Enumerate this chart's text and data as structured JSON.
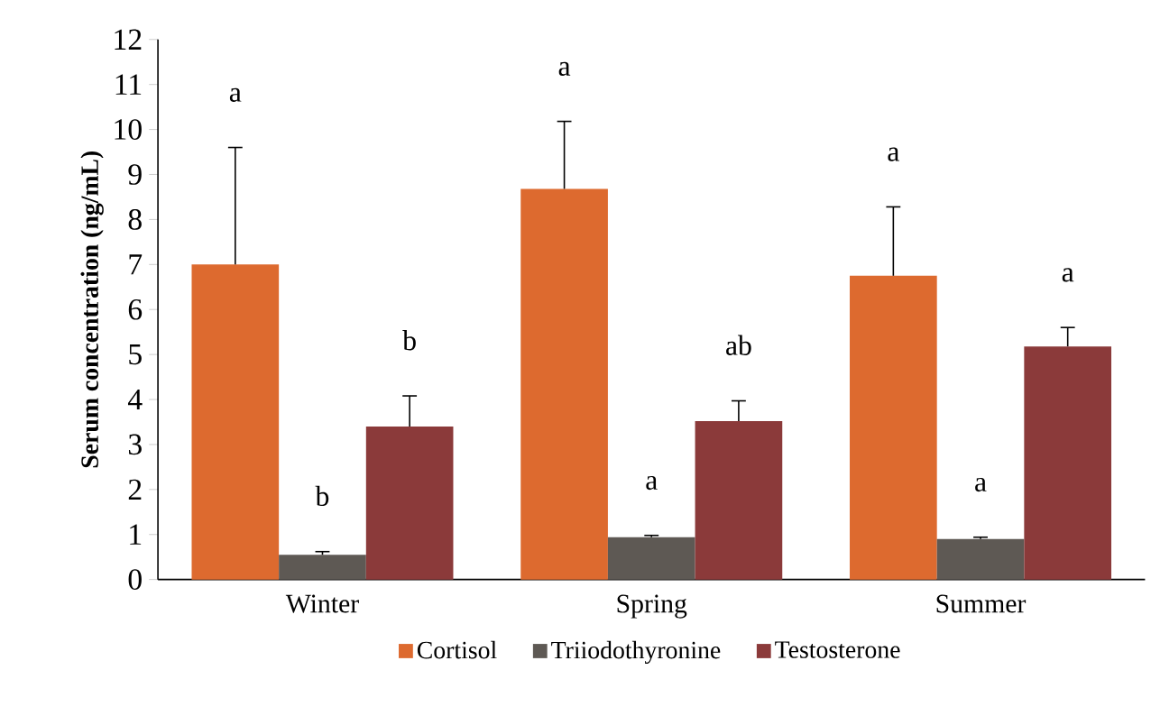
{
  "chart_data": {
    "type": "bar",
    "ylabel": "Serum concentration (ng/mL)",
    "categories": [
      "Winter",
      "Spring",
      "Summer"
    ],
    "series": [
      {
        "name": "Cortisol",
        "color": "#dd6a2f",
        "values": [
          7.0,
          8.68,
          6.75
        ],
        "errors": [
          2.6,
          1.5,
          1.53
        ]
      },
      {
        "name": "Triiodothyronine",
        "color": "#5e5954",
        "values": [
          0.55,
          0.94,
          0.9
        ],
        "errors": [
          0.07,
          0.04,
          0.04
        ]
      },
      {
        "name": "Testosterone",
        "color": "#8b3a3a",
        "values": [
          3.4,
          3.52,
          5.18
        ],
        "errors": [
          0.68,
          0.45,
          0.42
        ]
      }
    ],
    "ylim": [
      0,
      12
    ],
    "yticks": [
      0,
      1,
      2,
      3,
      4,
      5,
      6,
      7,
      8,
      9,
      10,
      11,
      12
    ],
    "grid": false,
    "legend": "bottom",
    "annotations": [
      "a",
      "b",
      "b",
      "a",
      "a",
      "ab",
      "a",
      "a",
      "a"
    ]
  }
}
